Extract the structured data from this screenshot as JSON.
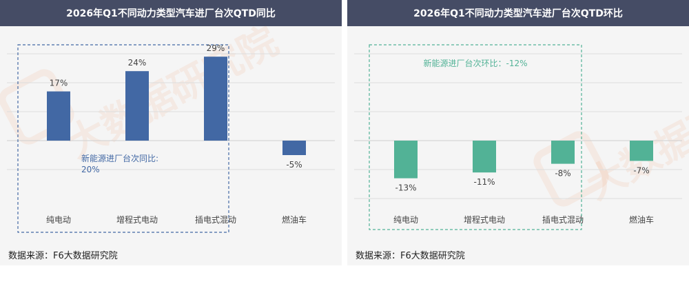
{
  "source_text": "数据来源：F6大数据研究院",
  "watermark_text": "大数据研究院",
  "chart_data": [
    {
      "type": "bar",
      "title": "2026年Q1不同动力类型汽车进厂台次QTD同比",
      "categories": [
        "纯电动",
        "增程式电动",
        "插电式混动",
        "燃油车"
      ],
      "values": [
        17,
        24,
        29,
        -5
      ],
      "value_labels": [
        "17%",
        "24%",
        "29%",
        "-5%"
      ],
      "ylim": [
        -10,
        35
      ],
      "bar_color": "#4268a4",
      "annotation": "新能源进厂台次同比:",
      "annotation_value": "20%",
      "annotation_color": "#4268a4",
      "grid": true
    },
    {
      "type": "bar",
      "title": "2026年Q1不同动力类型汽车进厂台次QTD环比",
      "categories": [
        "纯电动",
        "增程式电动",
        "插电式混动",
        "燃油车"
      ],
      "values": [
        -13,
        -11,
        -8,
        -7
      ],
      "value_labels": [
        "-13%",
        "-11%",
        "-8%",
        "-7%"
      ],
      "ylim": [
        -20,
        30
      ],
      "bar_color": "#52b296",
      "annotation": "新能源进厂台次环比：-12%",
      "annotation_color": "#52b296",
      "grid": true
    }
  ]
}
